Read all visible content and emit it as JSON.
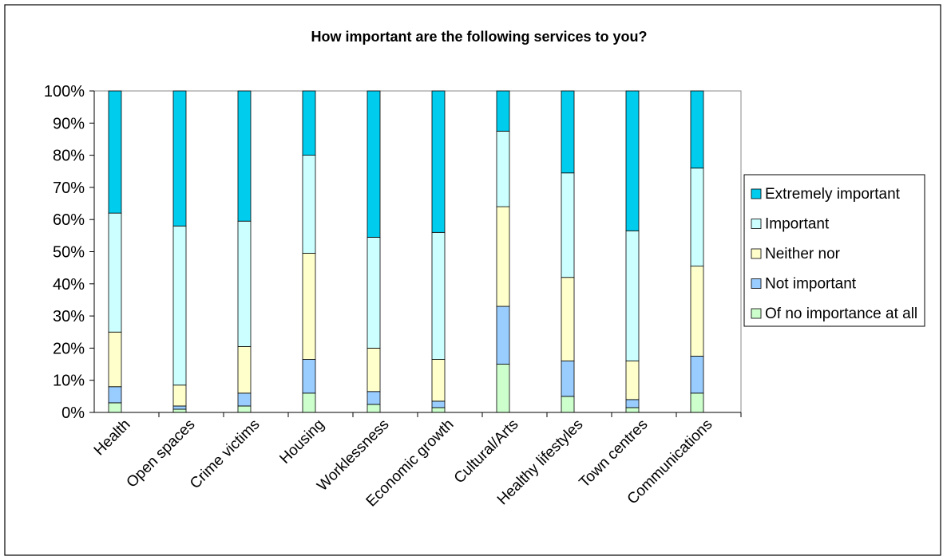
{
  "chart_data": {
    "type": "bar",
    "stacked": true,
    "percent": true,
    "title": "How important are the following services to you?",
    "xlabel": "",
    "ylabel": "",
    "ylim": [
      0,
      100
    ],
    "yticks": [
      "0%",
      "10%",
      "20%",
      "30%",
      "40%",
      "50%",
      "60%",
      "70%",
      "80%",
      "90%",
      "100%"
    ],
    "grid": false,
    "legend_position": "right",
    "categories": [
      "Health",
      "Open spaces",
      "Crime victims",
      "Housing",
      "Worklessness",
      "Economic growth",
      "Cultural/Arts",
      "Healthy lifestyles",
      "Town centres",
      "Communications"
    ],
    "series": [
      {
        "name": "Of no importance at all",
        "color": "#ccffcc",
        "values": [
          3,
          1,
          2,
          6,
          2.5,
          1.5,
          15,
          5,
          1.5,
          6
        ]
      },
      {
        "name": "Not important",
        "color": "#99ccff",
        "values": [
          5,
          1,
          4,
          10.5,
          4,
          2,
          18,
          11,
          2.5,
          11.5
        ]
      },
      {
        "name": "Neither nor",
        "color": "#ffffcc",
        "values": [
          17,
          6.5,
          14.5,
          33,
          13.5,
          13,
          31,
          26,
          12,
          28
        ]
      },
      {
        "name": "Important",
        "color": "#ccffff",
        "values": [
          37,
          49.5,
          39,
          30.5,
          34.5,
          39.5,
          23.5,
          32.5,
          40.5,
          30.5
        ]
      },
      {
        "name": "Extremely important",
        "color": "#00ccee",
        "values": [
          38,
          42,
          40.5,
          20,
          45.5,
          44,
          12.5,
          25.5,
          43.5,
          24
        ]
      }
    ]
  }
}
